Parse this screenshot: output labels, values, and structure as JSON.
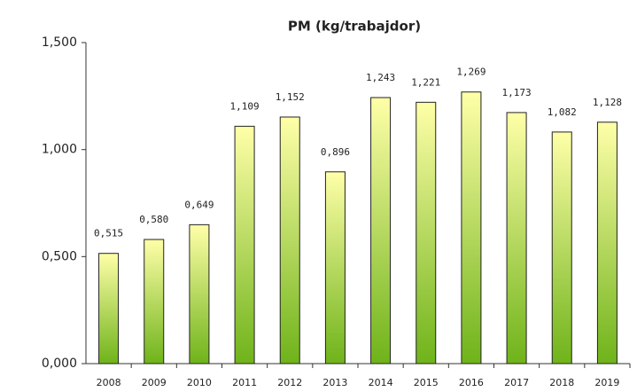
{
  "chart_data": {
    "type": "bar",
    "title": "PM (kg/trabajdor)",
    "categories": [
      "2008",
      "2009",
      "2010",
      "2011",
      "2012",
      "2013",
      "2014",
      "2015",
      "2016",
      "2017",
      "2018",
      "2019"
    ],
    "values": [
      0.515,
      0.58,
      0.649,
      1.109,
      1.152,
      0.896,
      1.243,
      1.221,
      1.269,
      1.173,
      1.082,
      1.128
    ],
    "value_labels": [
      "0,515",
      "0,580",
      "0,649",
      "1,109",
      "1,152",
      "0,896",
      "1,243",
      "1,221",
      "1,269",
      "1,173",
      "1,082",
      "1,128"
    ],
    "gradient": [
      "#ffffa8",
      "#6fb31a"
    ],
    "ylim": [
      0,
      1.5
    ],
    "yticks": [
      {
        "value": 0,
        "label": "0,000"
      },
      {
        "value": 0.5,
        "label": "0,500"
      },
      {
        "value": 1,
        "label": "1,000"
      },
      {
        "value": 1.5,
        "label": "1,500"
      }
    ]
  }
}
